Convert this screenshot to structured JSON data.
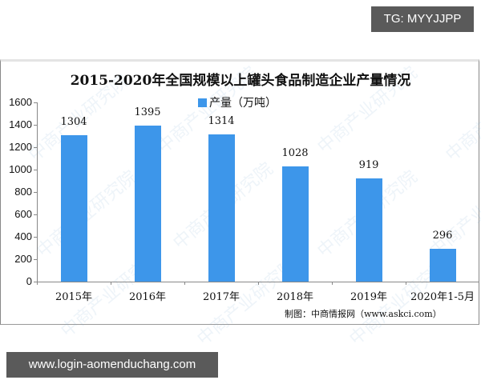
{
  "badges": {
    "top_right": "TG: MYYJJPP",
    "bottom_left": "www.login-aomenduchang.com"
  },
  "chart_data": {
    "type": "bar",
    "title": "2015-2020年全国规模以上罐头食品制造企业产量情况",
    "categories": [
      "2015年",
      "2016年",
      "2017年",
      "2018年",
      "2019年",
      "2020年1-5月"
    ],
    "series": [
      {
        "name": "产量（万吨）",
        "values": [
          1304,
          1395,
          1314,
          1028,
          919,
          296
        ],
        "color": "#3d96ea"
      }
    ],
    "value_labels": [
      "1304",
      "1395",
      "1314",
      "1028",
      "919",
      "296"
    ],
    "xlabel": "",
    "ylabel": "",
    "ylim": [
      0,
      1600
    ],
    "yticks": [
      "0",
      "200",
      "400",
      "600",
      "800",
      "1000",
      "1200",
      "1400",
      "1600"
    ],
    "grid": false,
    "legend_position": "top-center",
    "source": "制图：中商情报网（www.askci.com）",
    "watermark": "中商产业研究院"
  }
}
